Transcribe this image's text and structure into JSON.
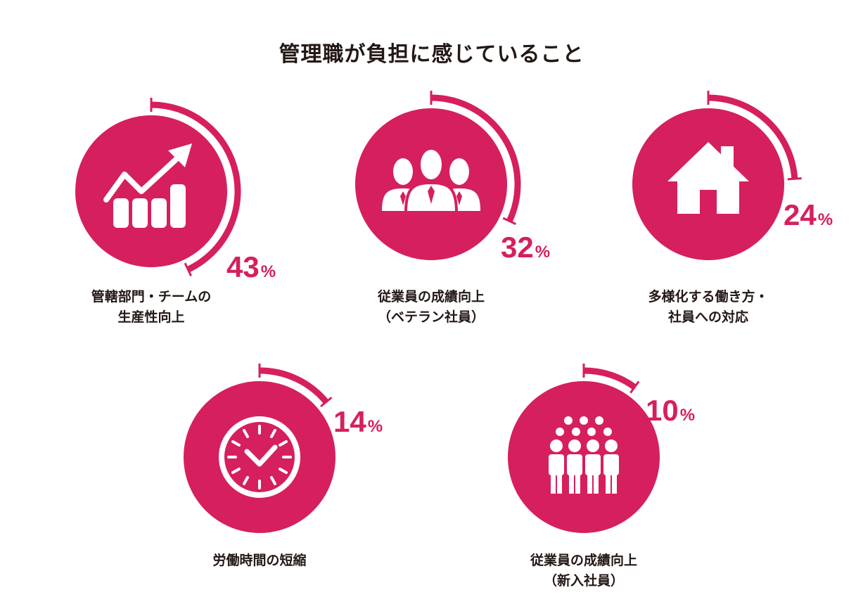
{
  "colors": {
    "accent": "#d61f5e",
    "text": "#231815",
    "icon": "#ffffff"
  },
  "chart_data": {
    "type": "radial-bar",
    "title": "管理職が負担に感じていること",
    "unit": "%",
    "items": [
      {
        "label_lines": [
          "管轄部門・チームの",
          "生産性向上"
        ],
        "value": 43,
        "icon": "growth-chart-icon"
      },
      {
        "label_lines": [
          "従業員の成績向上",
          "（ベテラン社員）"
        ],
        "value": 32,
        "icon": "business-people-icon"
      },
      {
        "label_lines": [
          "多様化する働き方・",
          "社員への対応"
        ],
        "value": 24,
        "icon": "house-icon"
      },
      {
        "label_lines": [
          "労働時間の短縮"
        ],
        "value": 14,
        "icon": "clock-icon"
      },
      {
        "label_lines": [
          "従業員の成績向上",
          "（新入社員）"
        ],
        "value": 10,
        "icon": "crowd-icon"
      }
    ]
  }
}
